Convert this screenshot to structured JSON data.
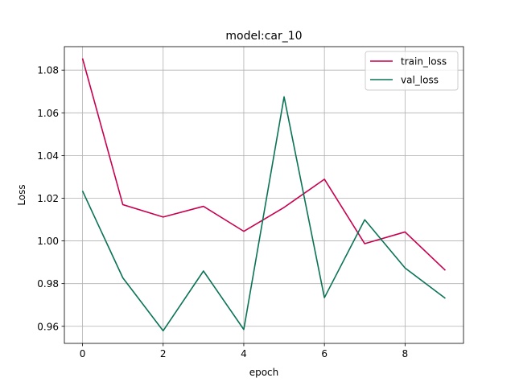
{
  "chart_data": {
    "type": "line",
    "title": "model:car_10",
    "xlabel": "epoch",
    "ylabel": "Loss",
    "x": [
      0,
      1,
      2,
      3,
      4,
      5,
      6,
      7,
      8,
      9
    ],
    "xlim": [
      -0.45,
      9.45
    ],
    "ylim": [
      0.952,
      1.091
    ],
    "xticks": [
      0,
      2,
      4,
      6,
      8
    ],
    "yticks": [
      0.96,
      0.98,
      1.0,
      1.02,
      1.04,
      1.06,
      1.08
    ],
    "ytick_labels": [
      "0.96",
      "0.98",
      "1.00",
      "1.02",
      "1.04",
      "1.06",
      "1.08"
    ],
    "grid": true,
    "legend_position": "top-right",
    "series": [
      {
        "name": "train_loss",
        "color": "#c8004f",
        "values": [
          1.0855,
          1.017,
          1.0112,
          1.0162,
          1.0045,
          1.0157,
          1.0289,
          0.9987,
          1.0042,
          0.9862
        ]
      },
      {
        "name": "val_loss",
        "color": "#0a7356",
        "values": [
          1.0234,
          0.9827,
          0.9579,
          0.9859,
          0.9585,
          1.0675,
          0.9734,
          1.0099,
          0.9873,
          0.9731
        ]
      }
    ]
  }
}
